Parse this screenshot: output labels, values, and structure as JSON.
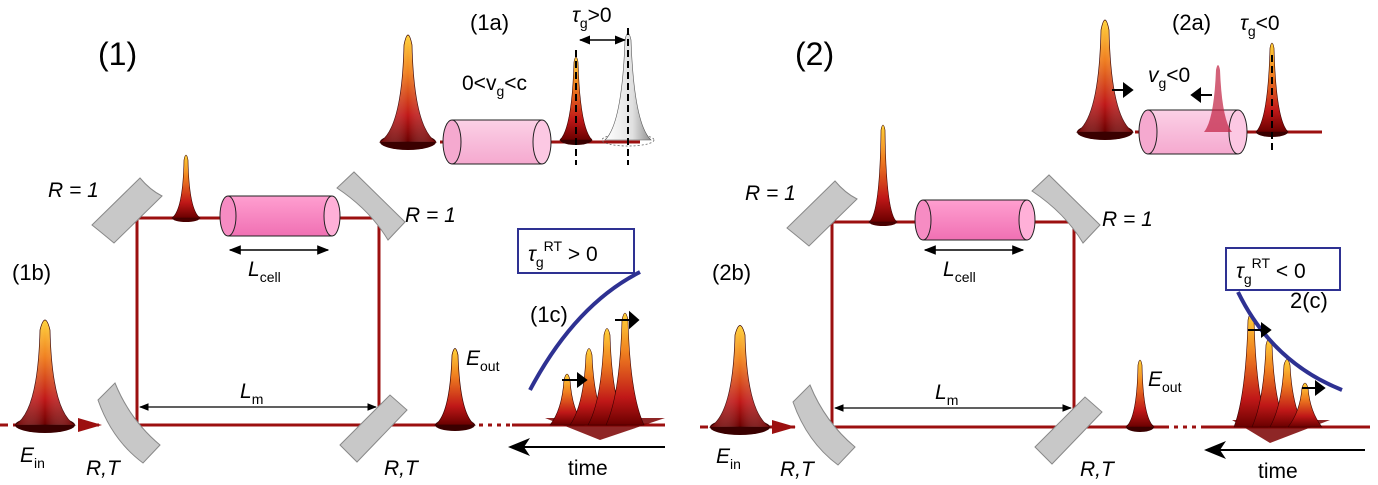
{
  "panel1": {
    "label": "(1)",
    "sub_a": "(1a)",
    "sub_b": "(1b)",
    "sub_c": "(1c)",
    "vg_text": "0<v",
    "vg_sub": "g",
    "vg_tail": "<c",
    "tau_text": "τ",
    "tau_sub": "g",
    "tau_tail": ">0",
    "R_top_left": "R = 1",
    "R_top_right": "R = 1",
    "RT_left": "R,T",
    "RT_right": "R,T",
    "L_cell": "L",
    "L_cell_sub": "cell",
    "L_m": "L",
    "L_m_sub": "m",
    "E_in": "E",
    "E_in_sub": "in",
    "E_out": "E",
    "E_out_sub": "out",
    "tau_rt": "τ",
    "tau_rt_sub": "g",
    "tau_rt_sup": "RT",
    "tau_rt_tail": " > 0",
    "time": "time"
  },
  "panel2": {
    "label": "(2)",
    "sub_a": "(2a)",
    "sub_b": "(2b)",
    "sub_c": "2(c)",
    "vg_text": "v",
    "vg_sub": "g",
    "vg_tail": "<0",
    "tau_text": "τ",
    "tau_sub": "g",
    "tau_tail": "<0",
    "R_top_left": "R = 1",
    "R_top_right": "R = 1",
    "RT_left": "R,T",
    "RT_right": "R,T",
    "L_cell": "L",
    "L_cell_sub": "cell",
    "L_m": "L",
    "L_m_sub": "m",
    "E_in": "E",
    "E_in_sub": "in",
    "E_out": "E",
    "E_out_sub": "out",
    "tau_rt": "τ",
    "tau_rt_sub": "g",
    "tau_rt_sup": "RT",
    "tau_rt_tail": " < 0",
    "time": "time"
  },
  "colors": {
    "beam": "#9c1010",
    "mirror": "#c8c8c8",
    "cell": "#f7b3d6",
    "envelope": "#2e3192"
  }
}
